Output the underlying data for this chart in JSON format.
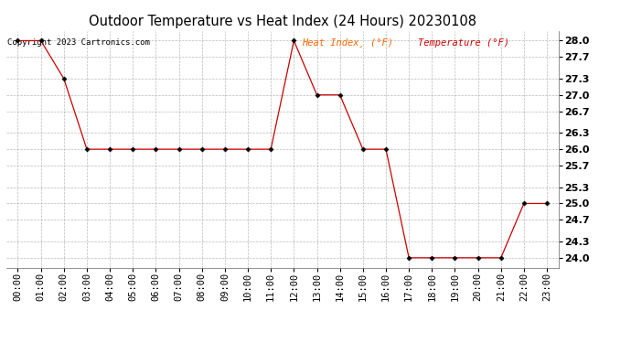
{
  "title": "Outdoor Temperature vs Heat Index (24 Hours) 20230108",
  "copyright": "Copyright 2023 Cartronics.com",
  "legend_heat": "Heat Index¸ (°F)",
  "legend_temp": "Temperature (°F)",
  "legend_color_heat": "#ff6600",
  "legend_color_temp": "#cc0000",
  "line_color": "#cc0000",
  "marker_color": "#000000",
  "x_labels": [
    "00:00",
    "01:00",
    "02:00",
    "03:00",
    "04:00",
    "05:00",
    "06:00",
    "07:00",
    "08:00",
    "09:00",
    "10:00",
    "11:00",
    "12:00",
    "13:00",
    "14:00",
    "15:00",
    "16:00",
    "17:00",
    "18:00",
    "19:00",
    "20:00",
    "21:00",
    "22:00",
    "23:00"
  ],
  "temperature": [
    28.0,
    28.0,
    27.3,
    26.0,
    26.0,
    26.0,
    26.0,
    26.0,
    26.0,
    26.0,
    26.0,
    26.0,
    28.0,
    27.0,
    27.0,
    26.0,
    26.0,
    24.0,
    24.0,
    24.0,
    24.0,
    24.0,
    25.0,
    25.0
  ],
  "ylim_min": 23.82,
  "ylim_max": 28.18,
  "yticks": [
    24.0,
    24.3,
    24.7,
    25.0,
    25.3,
    25.7,
    26.0,
    26.3,
    26.7,
    27.0,
    27.3,
    27.7,
    28.0
  ],
  "background_color": "#ffffff",
  "grid_color": "#aaaaaa",
  "title_fontsize": 10.5,
  "copyright_fontsize": 6.5,
  "legend_fontsize": 7.5,
  "tick_fontsize": 7.5,
  "ytick_fontsize": 8.0
}
